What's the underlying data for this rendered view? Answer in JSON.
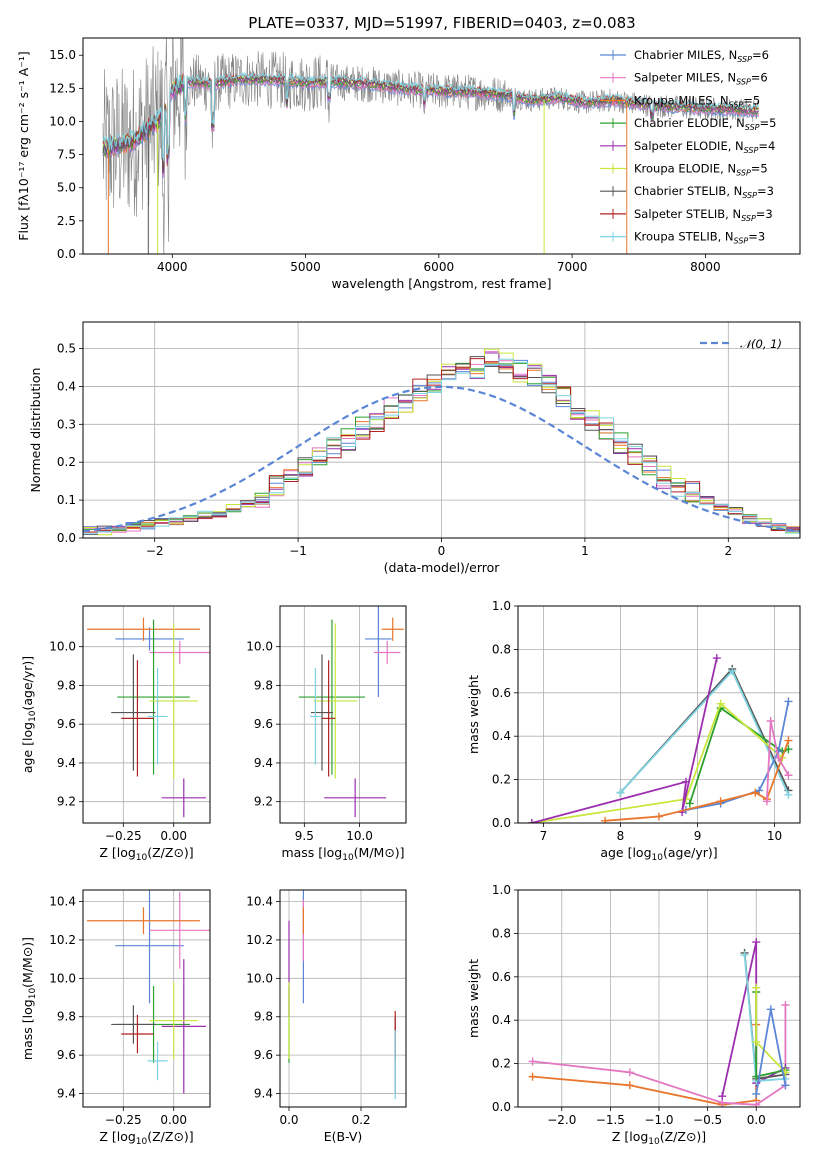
{
  "figure_title": "PLATE=0337, MJD=51997, FIBERID=0403, z=0.083",
  "model_colors": [
    "#5b86d6",
    "#e377c2",
    "#e8762c",
    "#2ca02c",
    "#9b2fae",
    "#c8e63c",
    "#555555",
    "#b22222",
    "#7fd3e0"
  ],
  "chart_data": [
    {
      "type": "line",
      "panel": "spectrum",
      "xlabel": "wavelength [Angstrom, rest frame]",
      "ylabel": "Flux [fλ10⁻¹⁷ erg cm⁻² s⁻¹ A⁻¹]",
      "xlim": [
        3330,
        8710
      ],
      "ylim": [
        0,
        16.3
      ],
      "xticks": [
        4000,
        5000,
        6000,
        7000,
        8000
      ],
      "yticks": [
        0.0,
        2.5,
        5.0,
        7.5,
        10.0,
        12.5,
        15.0
      ],
      "ytick_labels": [
        "0.0",
        "2.5",
        "5.0",
        "7.5",
        "10.0",
        "12.5",
        "15.0"
      ],
      "grid": false,
      "legend_position": "right",
      "legend": [
        {
          "pre": "Chabrier MILES, N",
          "sub": "SSP",
          "post": "=6",
          "color": "#5b86d6"
        },
        {
          "pre": "Salpeter MILES, N",
          "sub": "SSP",
          "post": "=6",
          "color": "#e377c2"
        },
        {
          "pre": "Kroupa MILES, N",
          "sub": "SSP",
          "post": "=5",
          "color": "#e8762c"
        },
        {
          "pre": "Chabrier ELODIE, N",
          "sub": "SSP",
          "post": "=5",
          "color": "#2ca02c"
        },
        {
          "pre": "Salpeter ELODIE, N",
          "sub": "SSP",
          "post": "=4",
          "color": "#9b2fae"
        },
        {
          "pre": "Kroupa ELODIE, N",
          "sub": "SSP",
          "post": "=5",
          "color": "#c8e63c"
        },
        {
          "pre": "Chabrier STELIB, N",
          "sub": "SSP",
          "post": "=3",
          "color": "#555555"
        },
        {
          "pre": "Salpeter STELIB, N",
          "sub": "SSP",
          "post": "=3",
          "color": "#b22222"
        },
        {
          "pre": "Kroupa STELIB, N",
          "sub": "SSP",
          "post": "=3",
          "color": "#7fd3e0"
        }
      ],
      "continuum": {
        "x": [
          3500,
          3700,
          3830,
          3950,
          4000,
          4100,
          4300,
          4500,
          4800,
          5000,
          5200,
          5500,
          5800,
          6000,
          6300,
          6500,
          6700,
          6900,
          7100,
          7300,
          7600,
          7900,
          8200,
          8400
        ],
        "y": [
          8.0,
          8.5,
          9.5,
          10.6,
          12.3,
          13.0,
          12.8,
          13.2,
          13.1,
          12.9,
          13.0,
          12.8,
          12.4,
          12.3,
          12.2,
          12.0,
          11.6,
          11.8,
          11.4,
          11.6,
          11.2,
          11.0,
          10.9,
          10.8
        ]
      },
      "dropouts": [
        {
          "x": 3520,
          "color": "#e8762c"
        },
        {
          "x": 3820,
          "color": "#555555"
        },
        {
          "x": 3890,
          "color": "#c8e63c"
        },
        {
          "x": 6790,
          "color": "#c8e63c"
        },
        {
          "x": 7410,
          "color": "#e8762c"
        }
      ]
    },
    {
      "type": "line",
      "panel": "residual_histogram",
      "xlabel": "(data-model)/error",
      "ylabel": "Normed distribution",
      "xlim": [
        -2.5,
        2.5
      ],
      "ylim": [
        0,
        0.57
      ],
      "xticks": [
        -2,
        -1,
        0,
        1,
        2
      ],
      "xtick_labels": [
        "−2",
        "−1",
        "0",
        "1",
        "2"
      ],
      "yticks": [
        0.0,
        0.1,
        0.2,
        0.3,
        0.4,
        0.5
      ],
      "ytick_labels": [
        "0.0",
        "0.1",
        "0.2",
        "0.3",
        "0.4",
        "0.5"
      ],
      "grid": true,
      "legend_position": "top-right",
      "legend_label": "𝒩(0, 1)",
      "gaussian": {
        "mu": 0,
        "sigma": 1,
        "color": "#5b86d6"
      },
      "bin_edges_start": -2.5,
      "bin_width": 0.1,
      "base_histogram": [
        0.02,
        0.02,
        0.025,
        0.03,
        0.035,
        0.04,
        0.045,
        0.05,
        0.06,
        0.06,
        0.08,
        0.09,
        0.11,
        0.14,
        0.16,
        0.19,
        0.22,
        0.24,
        0.26,
        0.29,
        0.31,
        0.34,
        0.36,
        0.39,
        0.41,
        0.44,
        0.46,
        0.45,
        0.47,
        0.46,
        0.44,
        0.43,
        0.4,
        0.37,
        0.34,
        0.31,
        0.29,
        0.25,
        0.22,
        0.19,
        0.16,
        0.14,
        0.12,
        0.1,
        0.08,
        0.07,
        0.05,
        0.04,
        0.03,
        0.02
      ]
    },
    {
      "type": "scatter",
      "panel": "age_vs_metallicity",
      "xlabel_pre": "Z [log",
      "xlabel_sub": "10",
      "xlabel_post": "(Z/Z⊙)]",
      "ylabel_pre": "age  [log",
      "ylabel_sub": "10",
      "ylabel_post": "(age/yr)]",
      "xlim": [
        -0.45,
        0.18
      ],
      "ylim": [
        9.09,
        10.21
      ],
      "xticks": [
        -0.25,
        0.0
      ],
      "xtick_labels": [
        "−0.25",
        "0.00"
      ],
      "yticks": [
        9.2,
        9.4,
        9.6,
        9.8,
        10.0
      ],
      "ytick_labels": [
        "9.2",
        "9.4",
        "9.6",
        "9.8",
        "10.0"
      ],
      "points": [
        {
          "x": -0.12,
          "y": 10.04,
          "xerr": 0.17,
          "yerr": 0.06,
          "c": "#5b86d6"
        },
        {
          "x": 0.03,
          "y": 9.97,
          "xerr": 0.15,
          "yerr": 0.06,
          "c": "#e377c2"
        },
        {
          "x": -0.15,
          "y": 10.09,
          "xerr": 0.28,
          "yerr": 0.06,
          "c": "#e8762c"
        },
        {
          "x": -0.1,
          "y": 9.74,
          "xerr": 0.18,
          "yerr": 0.4,
          "c": "#2ca02c"
        },
        {
          "x": 0.05,
          "y": 9.22,
          "xerr": 0.11,
          "yerr": 0.1,
          "c": "#9b2fae"
        },
        {
          "x": 0.0,
          "y": 9.72,
          "xerr": 0.12,
          "yerr": 0.4,
          "c": "#c8e63c"
        },
        {
          "x": -0.2,
          "y": 9.66,
          "xerr": 0.11,
          "yerr": 0.3,
          "c": "#555555"
        },
        {
          "x": -0.18,
          "y": 9.63,
          "xerr": 0.08,
          "yerr": 0.3,
          "c": "#b22222"
        },
        {
          "x": -0.08,
          "y": 9.64,
          "xerr": 0.05,
          "yerr": 0.25,
          "c": "#7fd3e0"
        }
      ]
    },
    {
      "type": "scatter",
      "panel": "age_vs_mass",
      "xlabel_pre": "mass [log",
      "xlabel_sub": "10",
      "xlabel_post": "(M/M⊙)]",
      "xlim": [
        9.28,
        10.42
      ],
      "ylim": [
        9.09,
        10.21
      ],
      "xticks": [
        9.5,
        10.0
      ],
      "xtick_labels": [
        "9.5",
        "10.0"
      ],
      "yticks": [
        9.2,
        9.4,
        9.6,
        9.8,
        10.0
      ],
      "ytick_labels": [
        "9.2",
        "9.4",
        "9.6",
        "9.8",
        "10.0"
      ],
      "points": [
        {
          "x": 10.17,
          "y": 10.04,
          "xerr": 0.12,
          "yerr": 0.3,
          "c": "#5b86d6"
        },
        {
          "x": 10.25,
          "y": 9.97,
          "xerr": 0.12,
          "yerr": 0.06,
          "c": "#e377c2"
        },
        {
          "x": 10.3,
          "y": 10.09,
          "xerr": 0.1,
          "yerr": 0.06,
          "c": "#e8762c"
        },
        {
          "x": 9.75,
          "y": 9.74,
          "xerr": 0.3,
          "yerr": 0.4,
          "c": "#2ca02c"
        },
        {
          "x": 9.96,
          "y": 9.22,
          "xerr": 0.28,
          "yerr": 0.1,
          "c": "#9b2fae"
        },
        {
          "x": 9.78,
          "y": 9.72,
          "xerr": 0.2,
          "yerr": 0.4,
          "c": "#c8e63c"
        },
        {
          "x": 9.66,
          "y": 9.66,
          "xerr": 0.1,
          "yerr": 0.3,
          "c": "#555555"
        },
        {
          "x": 9.72,
          "y": 9.63,
          "xerr": 0.06,
          "yerr": 0.3,
          "c": "#b22222"
        },
        {
          "x": 9.6,
          "y": 9.64,
          "xerr": 0.05,
          "yerr": 0.25,
          "c": "#7fd3e0"
        }
      ]
    },
    {
      "type": "line",
      "panel": "mass_weight_vs_age",
      "xlabel_pre": "age  [log",
      "xlabel_sub": "10",
      "xlabel_post": "(age/yr)]",
      "ylabel": "mass weight",
      "xlim": [
        6.67,
        10.33
      ],
      "ylim": [
        0,
        1.0
      ],
      "xticks": [
        7,
        8,
        9,
        10
      ],
      "xtick_labels": [
        "7",
        "8",
        "9",
        "10"
      ],
      "yticks": [
        0.0,
        0.2,
        0.4,
        0.6,
        0.8,
        1.0
      ],
      "ytick_labels": [
        "0.0",
        "0.2",
        "0.4",
        "0.6",
        "0.8",
        "1.0"
      ],
      "series": [
        {
          "c": "#555555",
          "x": [
            8.0,
            9.45,
            10.18
          ],
          "y": [
            0.14,
            0.71,
            0.15
          ]
        },
        {
          "c": "#7fd3e0",
          "x": [
            8.0,
            9.45,
            10.18
          ],
          "y": [
            0.14,
            0.7,
            0.13
          ]
        },
        {
          "c": "#2ca02c",
          "x": [
            8.9,
            9.3,
            10.1,
            10.18
          ],
          "y": [
            0.09,
            0.53,
            0.33,
            0.34
          ]
        },
        {
          "c": "#c8e63c",
          "x": [
            6.85,
            8.85,
            9.3,
            10.1
          ],
          "y": [
            0.0,
            0.11,
            0.55,
            0.3
          ]
        },
        {
          "c": "#9b2fae",
          "x": [
            6.85,
            8.85,
            8.8,
            9.25
          ],
          "y": [
            0.0,
            0.19,
            0.05,
            0.76
          ]
        },
        {
          "c": "#5b86d6",
          "x": [
            8.85,
            9.3,
            9.8,
            10.05,
            10.18
          ],
          "y": [
            0.06,
            0.09,
            0.15,
            0.33,
            0.56
          ]
        },
        {
          "c": "#e8762c",
          "x": [
            7.8,
            8.5,
            9.3,
            9.75,
            9.9,
            10.18
          ],
          "y": [
            0.01,
            0.03,
            0.1,
            0.14,
            0.11,
            0.38
          ]
        },
        {
          "c": "#e377c2",
          "x": [
            9.9,
            9.95,
            10.05,
            10.18
          ],
          "y": [
            0.1,
            0.47,
            0.3,
            0.22
          ]
        }
      ]
    },
    {
      "type": "scatter",
      "panel": "mass_vs_metallicity",
      "xlabel_pre": "Z [log",
      "xlabel_sub": "10",
      "xlabel_post": "(Z/Z⊙)]",
      "ylabel_pre": "mass [log",
      "ylabel_sub": "10",
      "ylabel_post": "(M/M⊙)]",
      "xlim": [
        -0.45,
        0.18
      ],
      "ylim": [
        9.33,
        10.46
      ],
      "xticks": [
        -0.25,
        0.0
      ],
      "xtick_labels": [
        "−0.25",
        "0.00"
      ],
      "yticks": [
        9.4,
        9.6,
        9.8,
        10.0,
        10.2,
        10.4
      ],
      "ytick_labels": [
        "9.4",
        "9.6",
        "9.8",
        "10.0",
        "10.2",
        "10.4"
      ],
      "points": [
        {
          "x": -0.12,
          "y": 10.17,
          "xerr": 0.17,
          "yerr": 0.3,
          "c": "#5b86d6"
        },
        {
          "x": 0.03,
          "y": 10.25,
          "xerr": 0.15,
          "yerr": 0.2,
          "c": "#e377c2"
        },
        {
          "x": -0.15,
          "y": 10.3,
          "xerr": 0.28,
          "yerr": 0.07,
          "c": "#e8762c"
        },
        {
          "x": -0.1,
          "y": 9.76,
          "xerr": 0.18,
          "yerr": 0.2,
          "c": "#2ca02c"
        },
        {
          "x": 0.05,
          "y": 9.75,
          "xerr": 0.11,
          "yerr": 0.35,
          "c": "#9b2fae"
        },
        {
          "x": 0.0,
          "y": 9.78,
          "xerr": 0.12,
          "yerr": 0.2,
          "c": "#c8e63c"
        },
        {
          "x": -0.2,
          "y": 9.76,
          "xerr": 0.11,
          "yerr": 0.1,
          "c": "#555555"
        },
        {
          "x": -0.18,
          "y": 9.71,
          "xerr": 0.08,
          "yerr": 0.1,
          "c": "#b22222"
        },
        {
          "x": -0.08,
          "y": 9.57,
          "xerr": 0.05,
          "yerr": 0.1,
          "c": "#7fd3e0"
        }
      ]
    },
    {
      "type": "scatter",
      "panel": "mass_vs_ebv",
      "xlabel": "E(B-V)",
      "xlim": [
        -0.025,
        0.325
      ],
      "ylim": [
        9.33,
        10.46
      ],
      "xticks": [
        0.0,
        0.2
      ],
      "xtick_labels": [
        "0.0",
        "0.2"
      ],
      "yticks": [
        9.4,
        9.6,
        9.8,
        10.0,
        10.2,
        10.4
      ],
      "ytick_labels": [
        "9.4",
        "9.6",
        "9.8",
        "10.0",
        "10.2",
        "10.4"
      ],
      "points": [
        {
          "x": 0.04,
          "y": 10.17,
          "yerr": 0.3,
          "c": "#5b86d6"
        },
        {
          "x": 0.04,
          "y": 10.25,
          "yerr": 0.16,
          "c": "#e377c2"
        },
        {
          "x": 0.04,
          "y": 10.3,
          "yerr": 0.07,
          "c": "#e8762c"
        },
        {
          "x": 0.0,
          "y": 9.76,
          "yerr": 0.2,
          "c": "#2ca02c"
        },
        {
          "x": 0.0,
          "y": 10.05,
          "yerr": 0.25,
          "c": "#9b2fae"
        },
        {
          "x": 0.0,
          "y": 9.78,
          "yerr": 0.2,
          "c": "#c8e63c"
        },
        {
          "x": 0.295,
          "y": 9.6,
          "yerr": 0.2,
          "c": "#555555"
        },
        {
          "x": 0.295,
          "y": 9.7,
          "yerr": 0.13,
          "c": "#b22222"
        },
        {
          "x": 0.295,
          "y": 9.55,
          "yerr": 0.18,
          "c": "#7fd3e0"
        }
      ]
    },
    {
      "type": "line",
      "panel": "mass_weight_vs_metallicity",
      "xlabel_pre": "Z [log",
      "xlabel_sub": "10",
      "xlabel_post": "(Z/Z⊙)]",
      "ylabel": "mass weight",
      "xlim": [
        -2.45,
        0.45
      ],
      "ylim": [
        0,
        1.0
      ],
      "xticks": [
        -2.0,
        -1.5,
        -1.0,
        -0.5,
        0.0
      ],
      "xtick_labels": [
        "−2.0",
        "−1.5",
        "−1.0",
        "−0.5",
        "0.0"
      ],
      "yticks": [
        0.0,
        0.2,
        0.4,
        0.6,
        0.8,
        1.0
      ],
      "ytick_labels": [
        "0.0",
        "0.2",
        "0.4",
        "0.6",
        "0.8",
        "1.0"
      ],
      "series": [
        {
          "c": "#e8762c",
          "x": [
            -2.3,
            -1.3,
            -0.35,
            0.0,
            0.0
          ],
          "y": [
            0.14,
            0.1,
            0.01,
            0.03,
            0.38
          ]
        },
        {
          "c": "#e377c2",
          "x": [
            -2.3,
            -1.3,
            -0.35,
            0.0,
            0.3,
            0.3
          ],
          "y": [
            0.21,
            0.16,
            0.02,
            0.01,
            0.1,
            0.47
          ]
        },
        {
          "c": "#9b2fae",
          "x": [
            -0.35,
            0.0,
            0.0,
            0.3
          ],
          "y": [
            0.05,
            0.76,
            0.11,
            0.18
          ]
        },
        {
          "c": "#555555",
          "x": [
            -0.12,
            0.0,
            0.3
          ],
          "y": [
            0.71,
            0.13,
            0.15
          ]
        },
        {
          "c": "#7fd3e0",
          "x": [
            -0.12,
            0.0,
            0.3
          ],
          "y": [
            0.7,
            0.12,
            0.13
          ]
        },
        {
          "c": "#2ca02c",
          "x": [
            0.0,
            0.0,
            0.3
          ],
          "y": [
            0.53,
            0.14,
            0.17
          ]
        },
        {
          "c": "#c8e63c",
          "x": [
            0.0,
            0.0,
            0.3
          ],
          "y": [
            0.55,
            0.3,
            0.16
          ]
        },
        {
          "c": "#5b86d6",
          "x": [
            0.0,
            0.15,
            0.3
          ],
          "y": [
            0.06,
            0.45,
            0.1
          ]
        }
      ]
    }
  ]
}
